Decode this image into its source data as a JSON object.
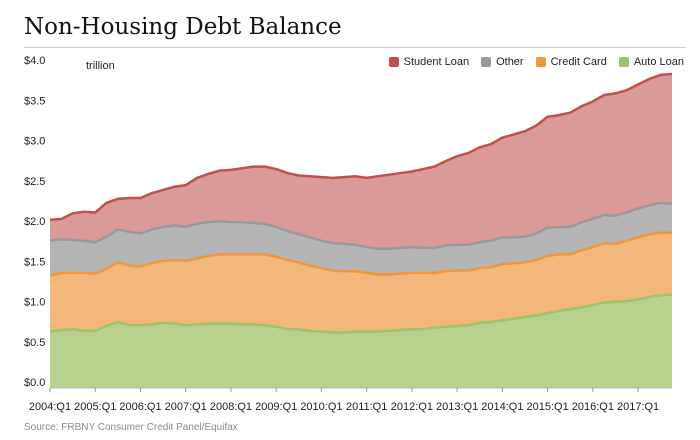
{
  "chart_data": {
    "type": "area",
    "title": "Non-Housing Debt Balance",
    "ylabel": "trillion",
    "ylim": [
      0,
      4.0
    ],
    "y_ticks": [
      "$0.0",
      "$0.5",
      "$1.0",
      "$1.5",
      "$2.0",
      "$2.5",
      "$3.0",
      "$3.5",
      "$4.0"
    ],
    "x_tick_labels": [
      "2004:Q1",
      "2005:Q1",
      "2006:Q1",
      "2007:Q1",
      "2008:Q1",
      "2009:Q1",
      "2010:Q1",
      "2011:Q1",
      "2012:Q1",
      "2013:Q1",
      "2014:Q1",
      "2015:Q1",
      "2016:Q1",
      "2017:Q1"
    ],
    "stacked": true,
    "legend_position": "top-right",
    "grid": false,
    "series": [
      {
        "name": "Auto Loan",
        "color": "#9dc36b",
        "fill": "#b6d28e",
        "values": [
          0.7,
          0.72,
          0.73,
          0.71,
          0.71,
          0.77,
          0.82,
          0.78,
          0.78,
          0.79,
          0.81,
          0.8,
          0.78,
          0.79,
          0.8,
          0.8,
          0.8,
          0.79,
          0.79,
          0.78,
          0.76,
          0.73,
          0.73,
          0.71,
          0.7,
          0.69,
          0.69,
          0.7,
          0.7,
          0.7,
          0.71,
          0.72,
          0.73,
          0.73,
          0.75,
          0.76,
          0.77,
          0.78,
          0.81,
          0.82,
          0.84,
          0.86,
          0.88,
          0.9,
          0.93,
          0.96,
          0.98,
          1.0,
          1.03,
          1.06,
          1.07,
          1.08,
          1.1,
          1.13,
          1.15,
          1.16
        ]
      },
      {
        "name": "Credit Card",
        "color": "#f0973b",
        "fill": "#f3b77b",
        "values": [
          0.7,
          0.71,
          0.7,
          0.72,
          0.71,
          0.71,
          0.74,
          0.74,
          0.73,
          0.76,
          0.77,
          0.79,
          0.8,
          0.82,
          0.84,
          0.86,
          0.86,
          0.87,
          0.87,
          0.88,
          0.87,
          0.86,
          0.83,
          0.81,
          0.79,
          0.77,
          0.76,
          0.75,
          0.73,
          0.71,
          0.7,
          0.7,
          0.7,
          0.7,
          0.68,
          0.69,
          0.69,
          0.68,
          0.68,
          0.68,
          0.7,
          0.69,
          0.68,
          0.69,
          0.71,
          0.7,
          0.68,
          0.71,
          0.72,
          0.74,
          0.72,
          0.75,
          0.77,
          0.78,
          0.78,
          0.77
        ]
      },
      {
        "name": "Other",
        "color": "#999999",
        "fill": "#b5b5b5",
        "values": [
          0.43,
          0.42,
          0.41,
          0.4,
          0.39,
          0.4,
          0.41,
          0.42,
          0.41,
          0.42,
          0.42,
          0.43,
          0.42,
          0.43,
          0.42,
          0.41,
          0.4,
          0.4,
          0.39,
          0.38,
          0.37,
          0.36,
          0.35,
          0.35,
          0.34,
          0.34,
          0.34,
          0.33,
          0.32,
          0.32,
          0.32,
          0.32,
          0.32,
          0.31,
          0.31,
          0.32,
          0.32,
          0.32,
          0.32,
          0.33,
          0.33,
          0.32,
          0.32,
          0.33,
          0.35,
          0.34,
          0.34,
          0.35,
          0.35,
          0.35,
          0.35,
          0.35,
          0.36,
          0.36,
          0.37,
          0.36
        ]
      },
      {
        "name": "Student Loan",
        "color": "#c0504d",
        "fill": "#d99a98",
        "values": [
          0.26,
          0.25,
          0.33,
          0.36,
          0.37,
          0.42,
          0.38,
          0.42,
          0.44,
          0.45,
          0.46,
          0.48,
          0.52,
          0.57,
          0.6,
          0.63,
          0.65,
          0.67,
          0.7,
          0.71,
          0.72,
          0.72,
          0.73,
          0.76,
          0.79,
          0.81,
          0.83,
          0.85,
          0.86,
          0.9,
          0.92,
          0.93,
          0.94,
          0.98,
          1.01,
          1.05,
          1.1,
          1.14,
          1.18,
          1.2,
          1.24,
          1.28,
          1.31,
          1.34,
          1.38,
          1.39,
          1.42,
          1.44,
          1.46,
          1.49,
          1.52,
          1.52,
          1.54,
          1.57,
          1.59,
          1.61
        ]
      }
    ]
  },
  "source": "Source: FRBNY Consumer Credit Panel/Equifax"
}
